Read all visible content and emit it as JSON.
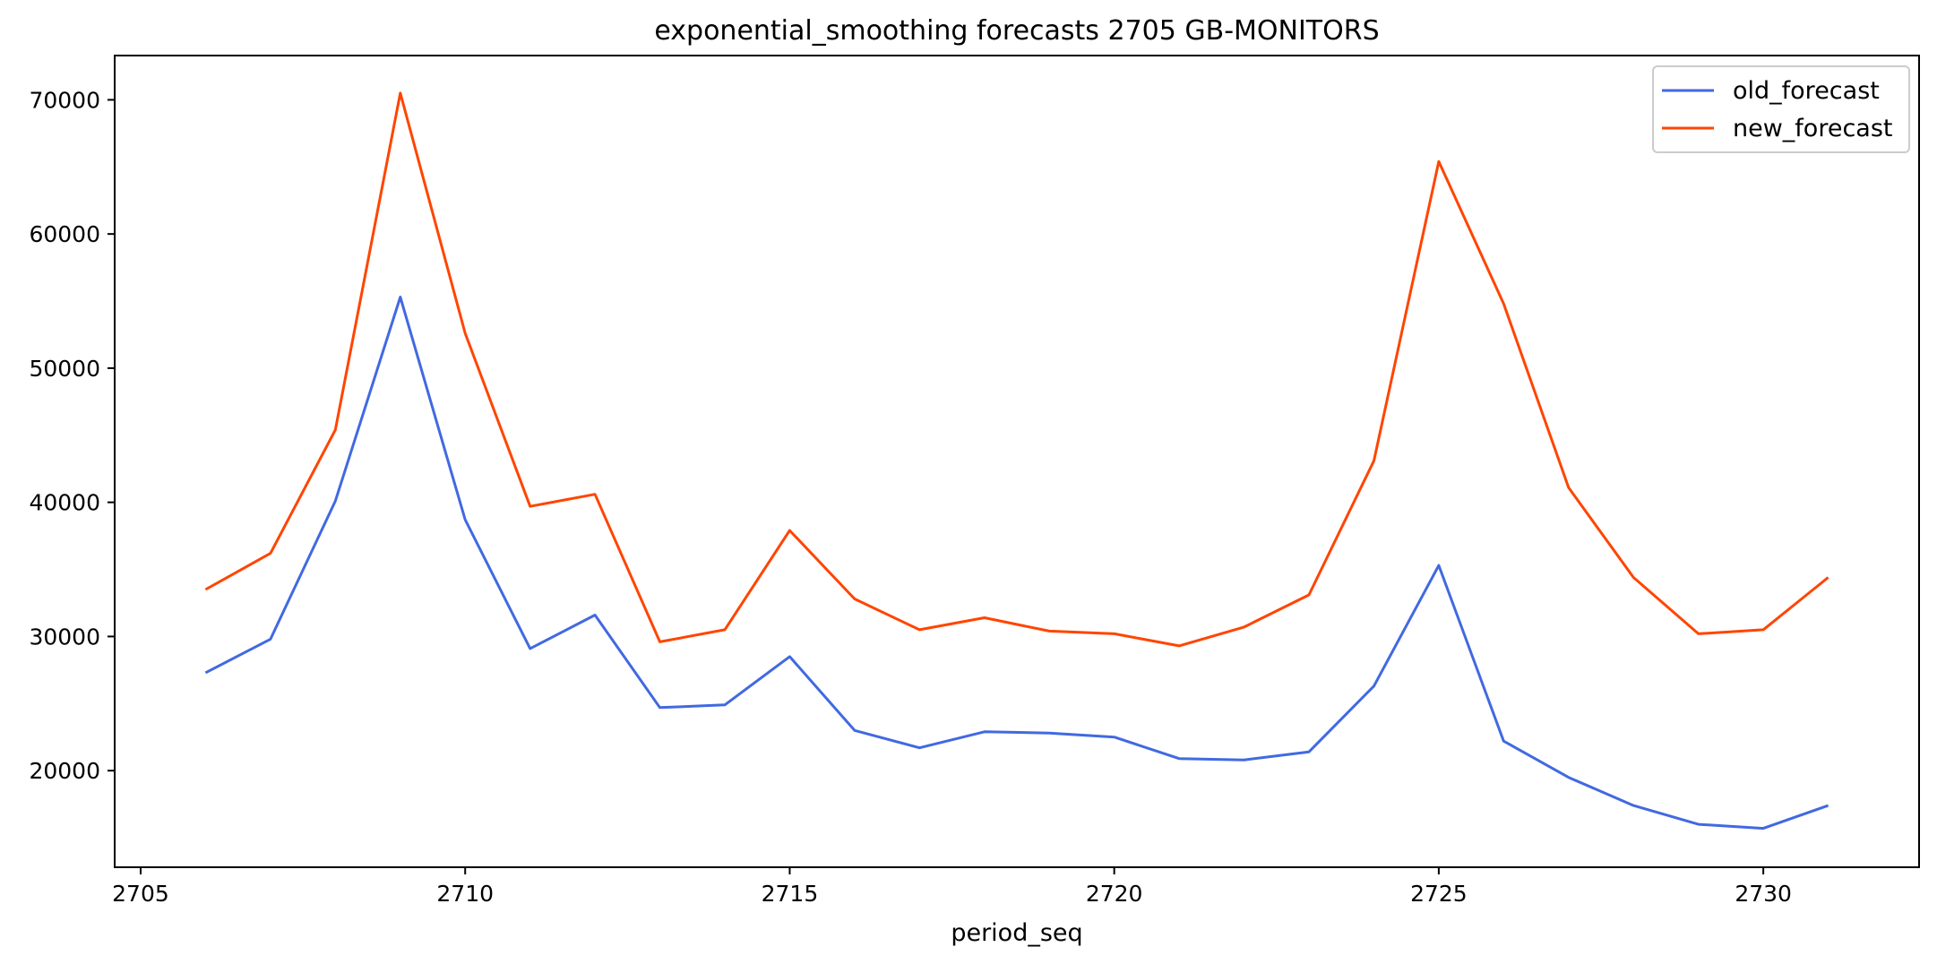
{
  "chart_data": {
    "type": "line",
    "title": "exponential_smoothing forecasts 2705 GB-MONITORS",
    "xlabel": "period_seq",
    "ylabel": "",
    "x": [
      2706,
      2707,
      2708,
      2709,
      2710,
      2711,
      2712,
      2713,
      2714,
      2715,
      2716,
      2717,
      2718,
      2719,
      2720,
      2721,
      2722,
      2723,
      2724,
      2725,
      2726,
      2727,
      2728,
      2729,
      2730,
      2731
    ],
    "xlim": [
      2704.6,
      2732.4
    ],
    "ylim": [
      12800,
      73300
    ],
    "xticks": [
      2705,
      2710,
      2715,
      2720,
      2725,
      2730
    ],
    "yticks": [
      20000,
      30000,
      40000,
      50000,
      60000,
      70000
    ],
    "grid": false,
    "legend_position": "top-right",
    "series": [
      {
        "name": "old_forecast",
        "color": "#4169E1",
        "values": [
          27300,
          29800,
          40100,
          55300,
          38700,
          29100,
          31600,
          24700,
          24900,
          28500,
          23000,
          21700,
          22900,
          22800,
          22500,
          20900,
          20800,
          21400,
          26300,
          35300,
          22200,
          19500,
          17400,
          16000,
          15700,
          17400
        ]
      },
      {
        "name": "new_forecast",
        "color": "#FF4500",
        "values": [
          33500,
          36200,
          45400,
          70500,
          52600,
          39700,
          40600,
          29600,
          30500,
          37900,
          32800,
          30500,
          31400,
          30400,
          30200,
          29300,
          30700,
          33100,
          43100,
          65400,
          54800,
          41100,
          34400,
          30200,
          30500,
          34400
        ]
      }
    ]
  }
}
